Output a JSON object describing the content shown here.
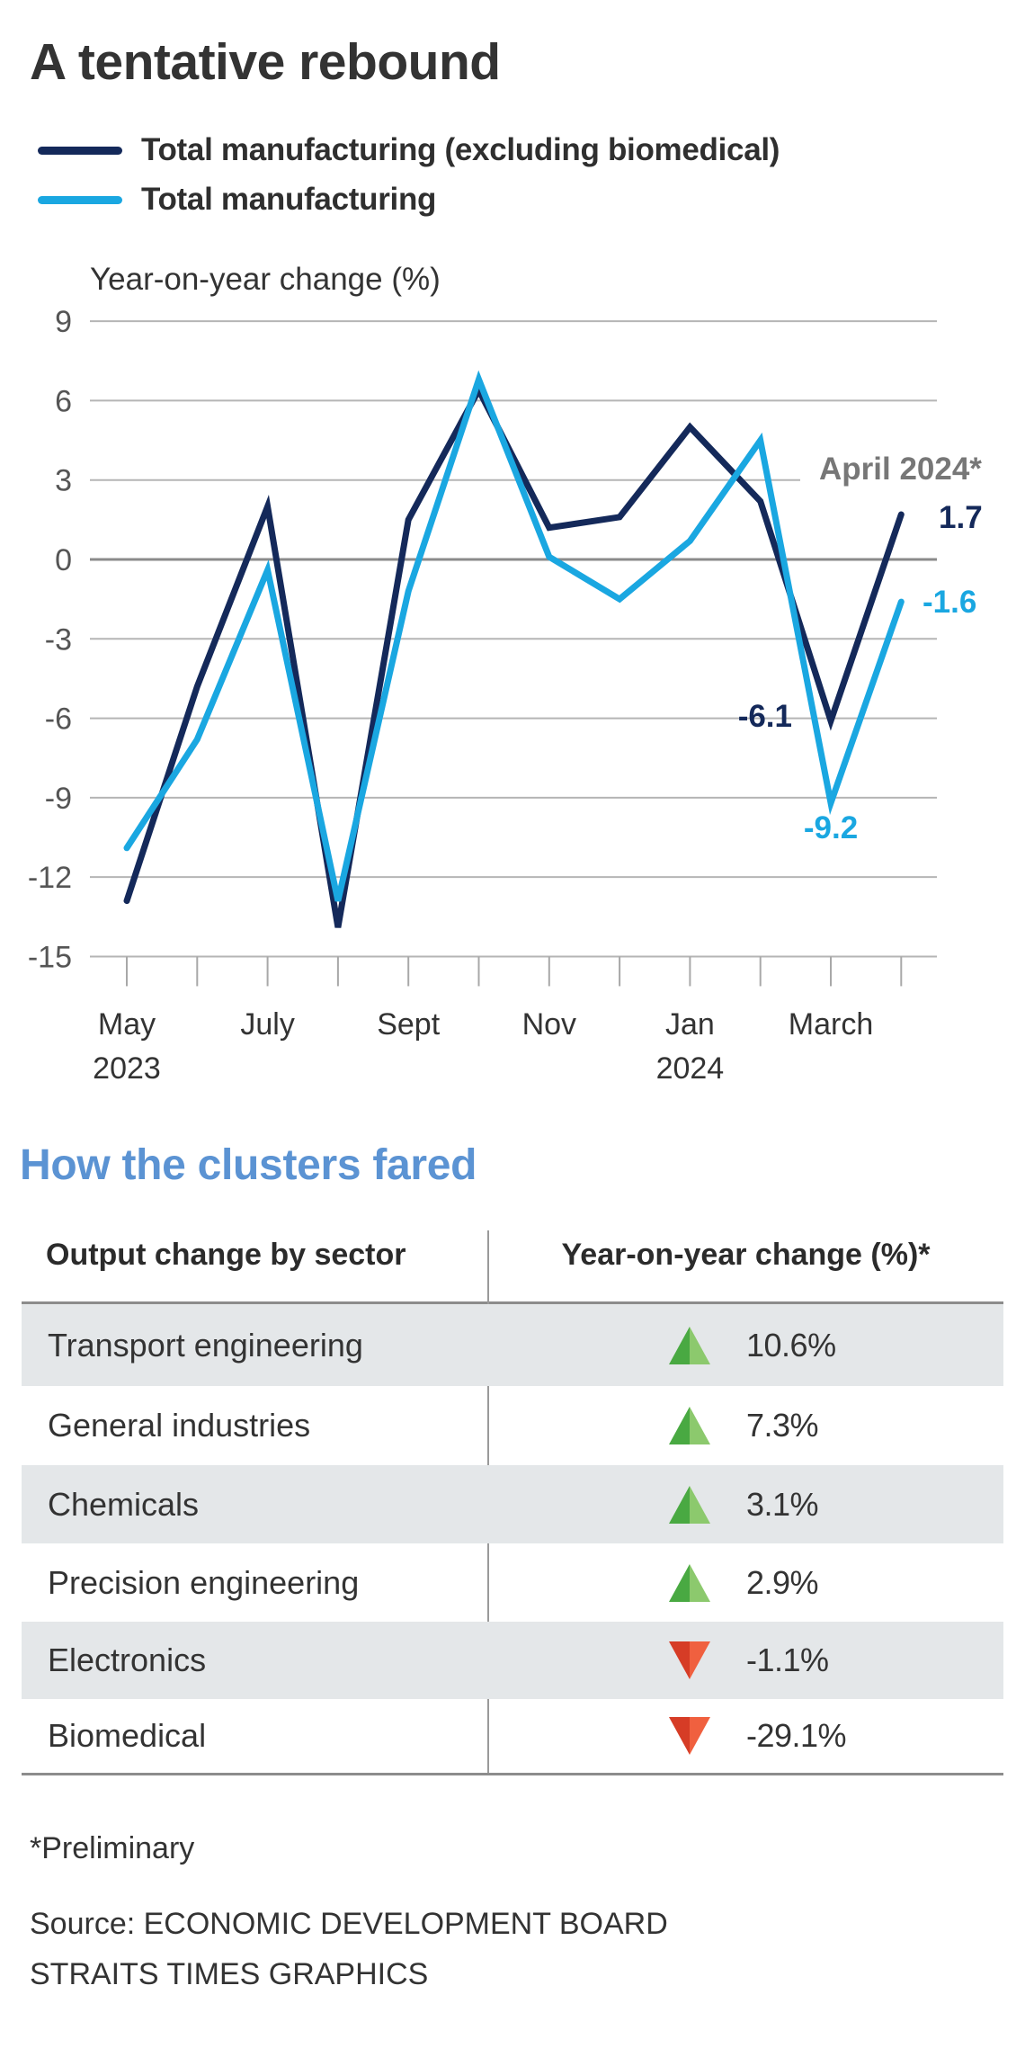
{
  "title": "A tentative rebound",
  "legend": [
    {
      "label": "Total manufacturing (excluding biomedical)",
      "color": "#14295a"
    },
    {
      "label": "Total manufacturing",
      "color": "#1aa7e1"
    }
  ],
  "chart_data": {
    "type": "line",
    "title": "A tentative rebound",
    "ylabel": "Year-on-year change (%)",
    "xlabel": "",
    "ylim": [
      -15,
      9
    ],
    "yticks": [
      9,
      6,
      3,
      0,
      -3,
      -6,
      -9,
      -12,
      -15
    ],
    "ytick_labels": [
      "9",
      "6",
      "3",
      "0",
      "-3",
      "-6",
      "-9",
      "-12",
      "-15"
    ],
    "grid": true,
    "legend_position": "top-left",
    "x": [
      "May 2023",
      "Jun 2023",
      "Jul 2023",
      "Aug 2023",
      "Sep 2023",
      "Oct 2023",
      "Nov 2023",
      "Dec 2023",
      "Jan 2024",
      "Feb 2024",
      "Mar 2024",
      "Apr 2024"
    ],
    "xtick_labels": [
      {
        "index": 0,
        "line1": "May",
        "line2": "2023"
      },
      {
        "index": 2,
        "line1": "July",
        "line2": ""
      },
      {
        "index": 4,
        "line1": "Sept",
        "line2": ""
      },
      {
        "index": 6,
        "line1": "Nov",
        "line2": ""
      },
      {
        "index": 8,
        "line1": "Jan",
        "line2": "2024"
      },
      {
        "index": 10,
        "line1": "March",
        "line2": ""
      }
    ],
    "series": [
      {
        "name": "Total manufacturing (excluding biomedical)",
        "color": "#14295a",
        "values": [
          -12.9,
          -4.8,
          2.0,
          -13.9,
          1.5,
          6.4,
          1.2,
          1.6,
          5.0,
          2.2,
          -6.1,
          1.7
        ]
      },
      {
        "name": "Total manufacturing",
        "color": "#1aa7e1",
        "values": [
          -10.9,
          -6.8,
          -0.4,
          -12.9,
          -1.2,
          6.8,
          0.1,
          -1.5,
          0.7,
          4.5,
          -9.2,
          -1.6
        ]
      }
    ],
    "annotations": [
      {
        "text": "April 2024*",
        "color": "#777777",
        "x_index": 11,
        "position": "above"
      },
      {
        "text": "1.7",
        "series": 0,
        "x_index": 11,
        "position": "right"
      },
      {
        "text": "-1.6",
        "series": 1,
        "x_index": 11,
        "position": "right"
      },
      {
        "text": "-6.1",
        "series": 0,
        "x_index": 10,
        "position": "left"
      },
      {
        "text": "-9.2",
        "series": 1,
        "x_index": 10,
        "position": "below"
      }
    ]
  },
  "clusters": {
    "title": "How the clusters fared",
    "headers": {
      "sector": "Output change by sector",
      "change": "Year-on-year change (%)*"
    },
    "colors": {
      "up_dark": "#49a942",
      "up_light": "#8cc96d",
      "down_dark": "#d63c26",
      "down_light": "#f0603f"
    },
    "rows": [
      {
        "sector": "Transport engineering",
        "value": "10.6%",
        "direction": "up"
      },
      {
        "sector": "General industries",
        "value": "7.3%",
        "direction": "up"
      },
      {
        "sector": "Chemicals",
        "value": "3.1%",
        "direction": "up"
      },
      {
        "sector": "Precision engineering",
        "value": "2.9%",
        "direction": "up"
      },
      {
        "sector": "Electronics",
        "value": "-1.1%",
        "direction": "down"
      },
      {
        "sector": "Biomedical",
        "value": "-29.1%",
        "direction": "down"
      }
    ]
  },
  "footnotes": {
    "preliminary": "*Preliminary",
    "source": "Source: ECONOMIC DEVELOPMENT BOARD",
    "credit": "STRAITS TIMES GRAPHICS"
  }
}
